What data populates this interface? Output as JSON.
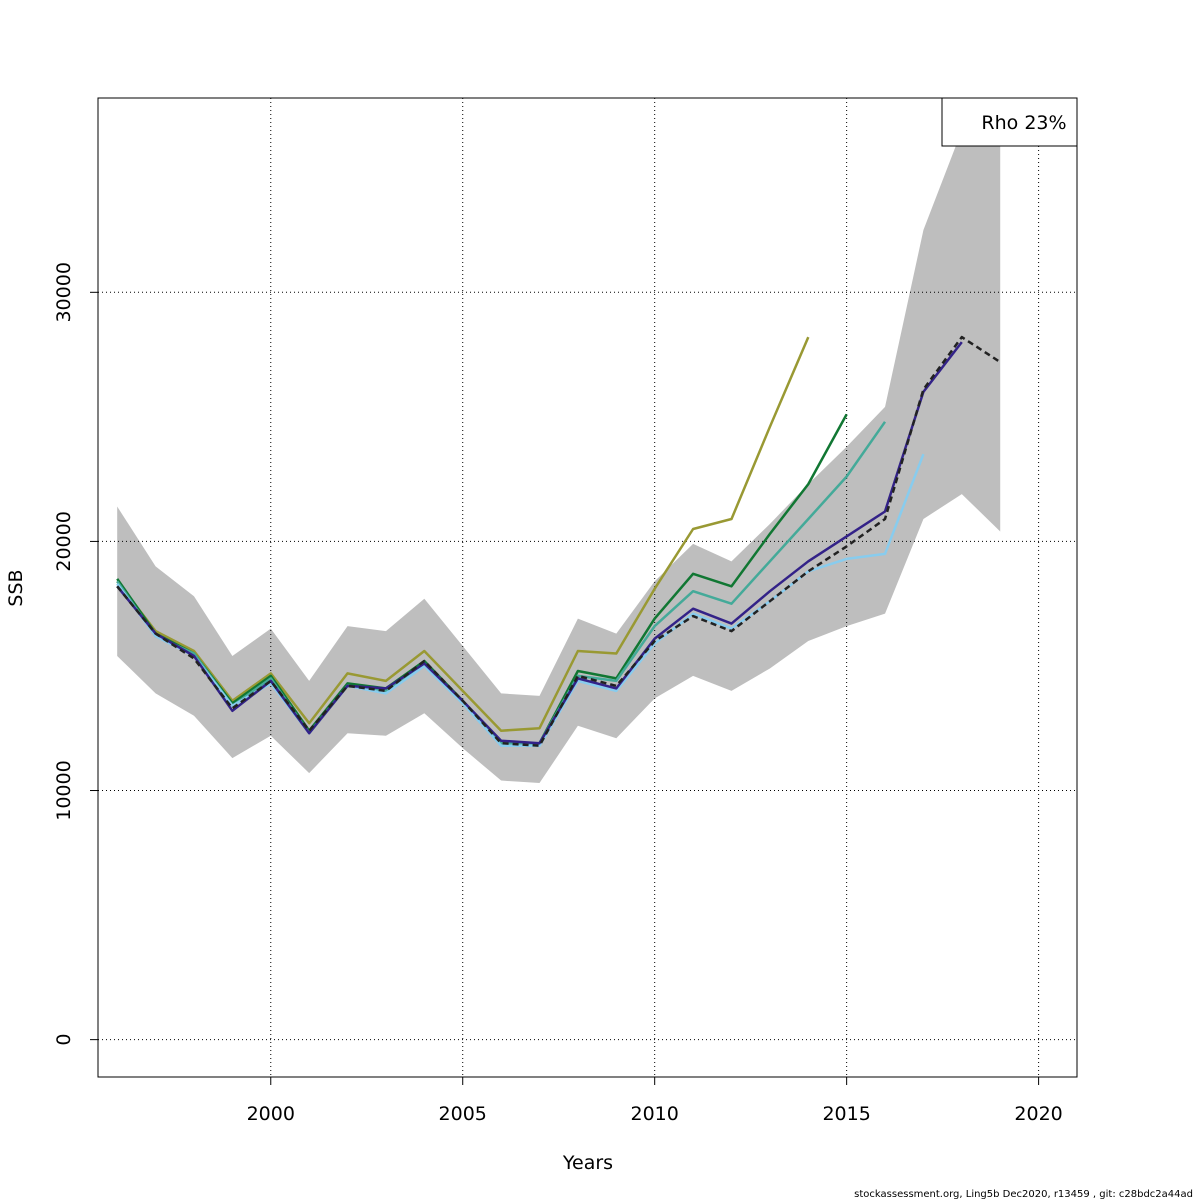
{
  "chart_data": {
    "type": "line",
    "xlabel": "Years",
    "ylabel": "SSB",
    "xlim": [
      1995.5,
      2021.0
    ],
    "ylim": [
      -1500,
      37800
    ],
    "x_ticks": [
      2000,
      2005,
      2010,
      2015,
      2020
    ],
    "y_ticks": [
      0,
      10000,
      20000,
      30000
    ],
    "x_tick_labels": [
      "2000",
      "2005",
      "2010",
      "2015",
      "2020"
    ],
    "y_tick_labels": [
      "0",
      "10000",
      "20000",
      "30000"
    ],
    "grid": true,
    "legend": {
      "text": "Rho 23%",
      "placement": "top-right"
    },
    "footer": "stockassessment.org, Ling5b  Dec2020, r13459 , git: c28bdc2a44ad",
    "confidence_band": {
      "x": [
        1996,
        1997,
        1998,
        1999,
        2000,
        2001,
        2002,
        2003,
        2004,
        2005,
        2006,
        2007,
        2008,
        2009,
        2010,
        2011,
        2012,
        2013,
        2014,
        2015,
        2016,
        2017,
        2018,
        2019
      ],
      "lower": [
        15400,
        13900,
        13000,
        11300,
        12200,
        10700,
        12300,
        12200,
        13100,
        11700,
        10400,
        10300,
        12600,
        12100,
        13700,
        14600,
        14000,
        14900,
        16000,
        16600,
        17100,
        20900,
        21900,
        20400
      ],
      "upper": [
        21400,
        19000,
        17800,
        15400,
        16500,
        14400,
        16600,
        16400,
        17700,
        15800,
        13900,
        13800,
        16900,
        16300,
        18400,
        19900,
        19200,
        20700,
        22300,
        23800,
        25400,
        32500,
        36500,
        37800
      ]
    },
    "series": [
      {
        "color": "#222222",
        "dashed": true,
        "x": [
          1996,
          1997,
          1998,
          1999,
          2000,
          2001,
          2002,
          2003,
          2004,
          2005,
          2006,
          2007,
          2008,
          2009,
          2010,
          2011,
          2012,
          2013,
          2014,
          2015,
          2016,
          2017,
          2018,
          2019
        ],
        "values": [
          18200,
          16300,
          15300,
          13300,
          14400,
          12400,
          14200,
          14000,
          15200,
          13600,
          11900,
          11800,
          14600,
          14200,
          16000,
          17000,
          16400,
          17600,
          18800,
          19800,
          20900,
          26100,
          28200,
          27200
        ]
      },
      {
        "color": "#332288",
        "x": [
          1996,
          1997,
          1998,
          1999,
          2000,
          2001,
          2002,
          2003,
          2004,
          2005,
          2006,
          2007,
          2008,
          2009,
          2010,
          2011,
          2012,
          2013,
          2014,
          2015,
          2016,
          2017,
          2018
        ],
        "values": [
          18200,
          16300,
          15400,
          13200,
          14400,
          12300,
          14200,
          14100,
          15100,
          13600,
          12000,
          11900,
          14500,
          14100,
          16100,
          17300,
          16700,
          18000,
          19200,
          20200,
          21200,
          26000,
          28000
        ]
      },
      {
        "color": "#88ccee",
        "x": [
          1996,
          1997,
          1998,
          1999,
          2000,
          2001,
          2002,
          2003,
          2004,
          2005,
          2006,
          2007,
          2008,
          2009,
          2010,
          2011,
          2012,
          2013,
          2014,
          2015,
          2016,
          2017
        ],
        "values": [
          18300,
          16200,
          15400,
          13400,
          14300,
          12300,
          14200,
          13900,
          15000,
          13500,
          11800,
          11800,
          14400,
          14000,
          15900,
          17100,
          16500,
          17600,
          18800,
          19300,
          19500,
          23500
        ]
      },
      {
        "color": "#44aa99",
        "x": [
          1996,
          1997,
          1998,
          1999,
          2000,
          2001,
          2002,
          2003,
          2004,
          2005,
          2006,
          2007,
          2008,
          2009,
          2010,
          2011,
          2012,
          2013,
          2014,
          2015,
          2016
        ],
        "values": [
          18400,
          16200,
          15500,
          13400,
          14500,
          12300,
          14200,
          14000,
          15100,
          13500,
          11900,
          11900,
          14600,
          14400,
          16600,
          18000,
          17500,
          19200,
          20900,
          22600,
          24800
        ]
      },
      {
        "color": "#117733",
        "x": [
          1996,
          1997,
          1998,
          1999,
          2000,
          2001,
          2002,
          2003,
          2004,
          2005,
          2006,
          2007,
          2008,
          2009,
          2010,
          2011,
          2012,
          2013,
          2014,
          2015
        ],
        "values": [
          18500,
          16300,
          15500,
          13500,
          14600,
          12400,
          14300,
          14100,
          15200,
          13600,
          11900,
          11900,
          14800,
          14500,
          16900,
          18700,
          18200,
          20300,
          22300,
          25100
        ]
      },
      {
        "color": "#999933",
        "x": [
          1996,
          1997,
          1998,
          1999,
          2000,
          2001,
          2002,
          2003,
          2004,
          2005,
          2006,
          2007,
          2008,
          2009,
          2010,
          2011,
          2012,
          2013,
          2014
        ],
        "values": [
          18400,
          16400,
          15600,
          13600,
          14700,
          12700,
          14700,
          14400,
          15600,
          14000,
          12400,
          12500,
          15600,
          15500,
          18100,
          20500,
          20900,
          24600,
          28200
        ]
      }
    ]
  }
}
